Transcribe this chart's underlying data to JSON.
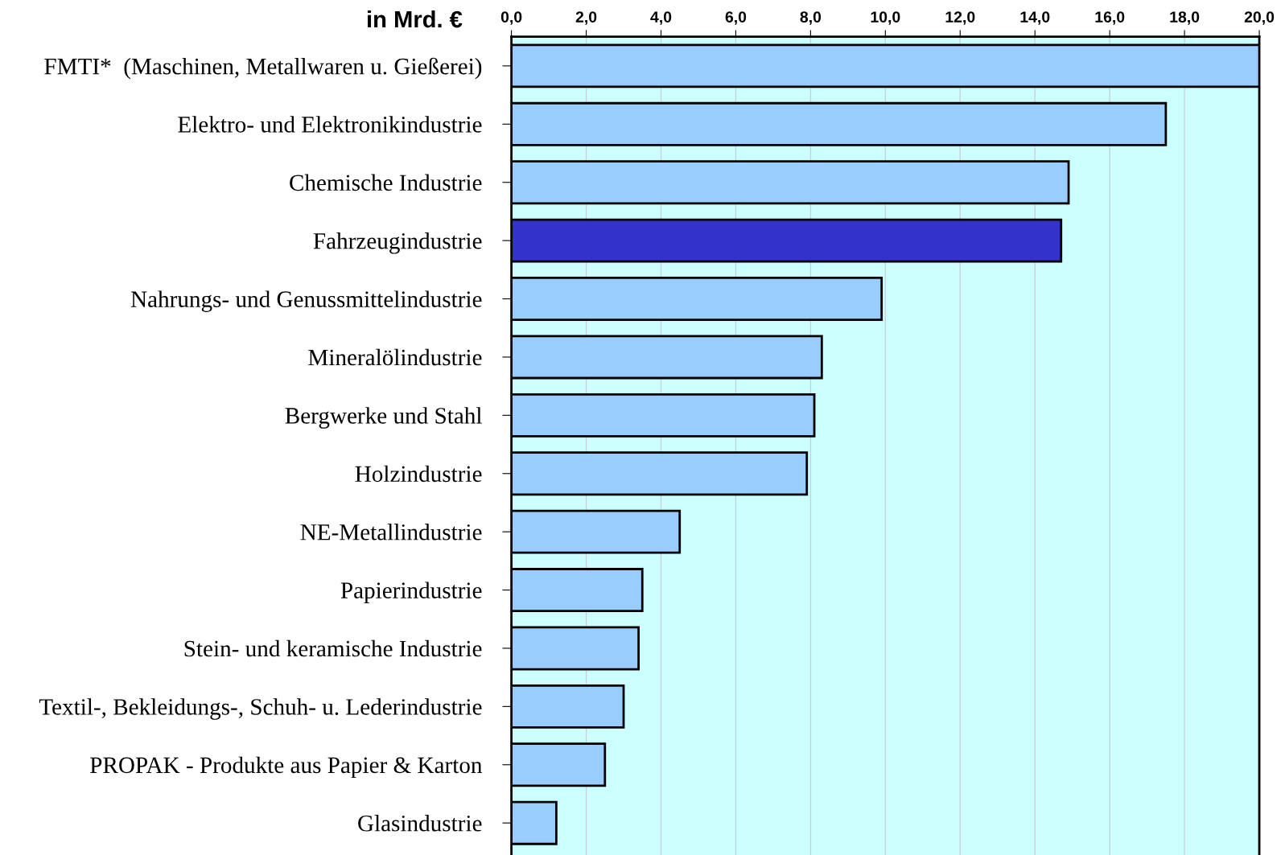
{
  "chart_data": {
    "type": "bar",
    "orientation": "horizontal",
    "title": "in Mrd. €",
    "categories": [
      "FMTI*  (Maschinen, Metallwaren u. Gießerei)",
      "Elektro- und Elektronikindustrie",
      "Chemische Industrie",
      "Fahrzeugindustrie",
      "Nahrungs- und Genussmittelindustrie",
      "Mineralölindustrie",
      "Bergwerke und Stahl",
      "Holzindustrie",
      "NE-Metallindustrie",
      "Papierindustrie",
      "Stein- und keramische Industrie",
      "Textil-, Bekleidungs-, Schuh- u. Lederindustrie",
      "PROPAK - Produkte aus Papier & Karton",
      "Glasindustrie"
    ],
    "values": [
      20.0,
      17.5,
      14.9,
      14.7,
      9.9,
      8.3,
      8.1,
      7.9,
      4.5,
      3.5,
      3.4,
      3.0,
      2.5,
      1.2
    ],
    "colors": [
      "#99ccff",
      "#99ccff",
      "#99ccff",
      "#3333cc",
      "#99ccff",
      "#99ccff",
      "#99ccff",
      "#99ccff",
      "#99ccff",
      "#99ccff",
      "#99ccff",
      "#99ccff",
      "#99ccff",
      "#99ccff"
    ],
    "xlim": [
      0,
      20
    ],
    "xticks": [
      {
        "value": 0,
        "label": "0,0"
      },
      {
        "value": 2,
        "label": "2,0"
      },
      {
        "value": 4,
        "label": "4,0"
      },
      {
        "value": 6,
        "label": "6,0"
      },
      {
        "value": 8,
        "label": "8,0"
      },
      {
        "value": 10,
        "label": "10,0"
      },
      {
        "value": 12,
        "label": "12,0"
      },
      {
        "value": 14,
        "label": "14,0"
      },
      {
        "value": 16,
        "label": "16,0"
      },
      {
        "value": 18,
        "label": "18,0"
      },
      {
        "value": 20,
        "label": "20,0"
      }
    ],
    "grid": "x",
    "legend": false
  }
}
